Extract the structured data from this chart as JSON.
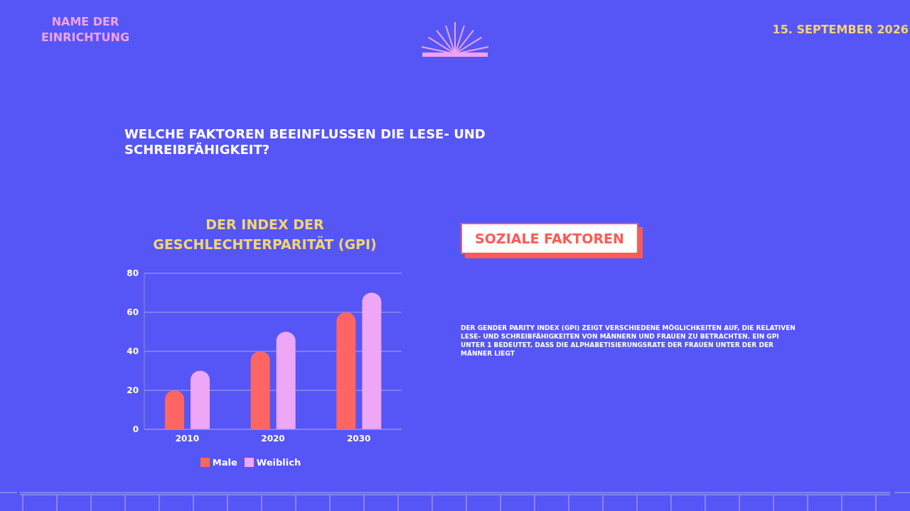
{
  "chart_data": {
    "type": "bar",
    "title": "WELCHE FAKTOREN BEEINFLUSSEN DIE LESE- UND SCHREIBFÄHIGKEIT?",
    "subtitle": "DER INDEX DER GESCHLECHTERPARITÄT (GPI)",
    "annotations": [
      "NAME DER EINRICHTUNG",
      "15. SEPTEMBER 2026",
      "SOZIALE FAKTOREN",
      "DER GENDER PARITY INDEX (GPI) ZEIGT VERSCHIEDENE MÖGLICHKEITEN AUF, DIE RELATIVEN LESE- UND SCHREIBFÄHIGKEITEN VON MÄNNERN UND FRAUEN ZU BETRACHTEN. EIN GPI UNTER 1 BEDEUTET, DASS DIE ALPHABETISIERUNGSRATE DER FRAUEN UNTER DER DER MÄNNER LIEGT"
    ],
    "categories": [
      "2010",
      "2020",
      "2030"
    ],
    "series": [
      {
        "name": "Male",
        "color": "#fe6563",
        "values": [
          20,
          40,
          60
        ]
      },
      {
        "name": "Weiblich",
        "color": "#eea6f6",
        "values": [
          30,
          50,
          70
        ]
      }
    ],
    "ylim": [
      0,
      80
    ],
    "yticks": [
      0,
      20,
      40,
      60,
      80
    ],
    "grid": "y",
    "legend": "bottom"
  }
}
